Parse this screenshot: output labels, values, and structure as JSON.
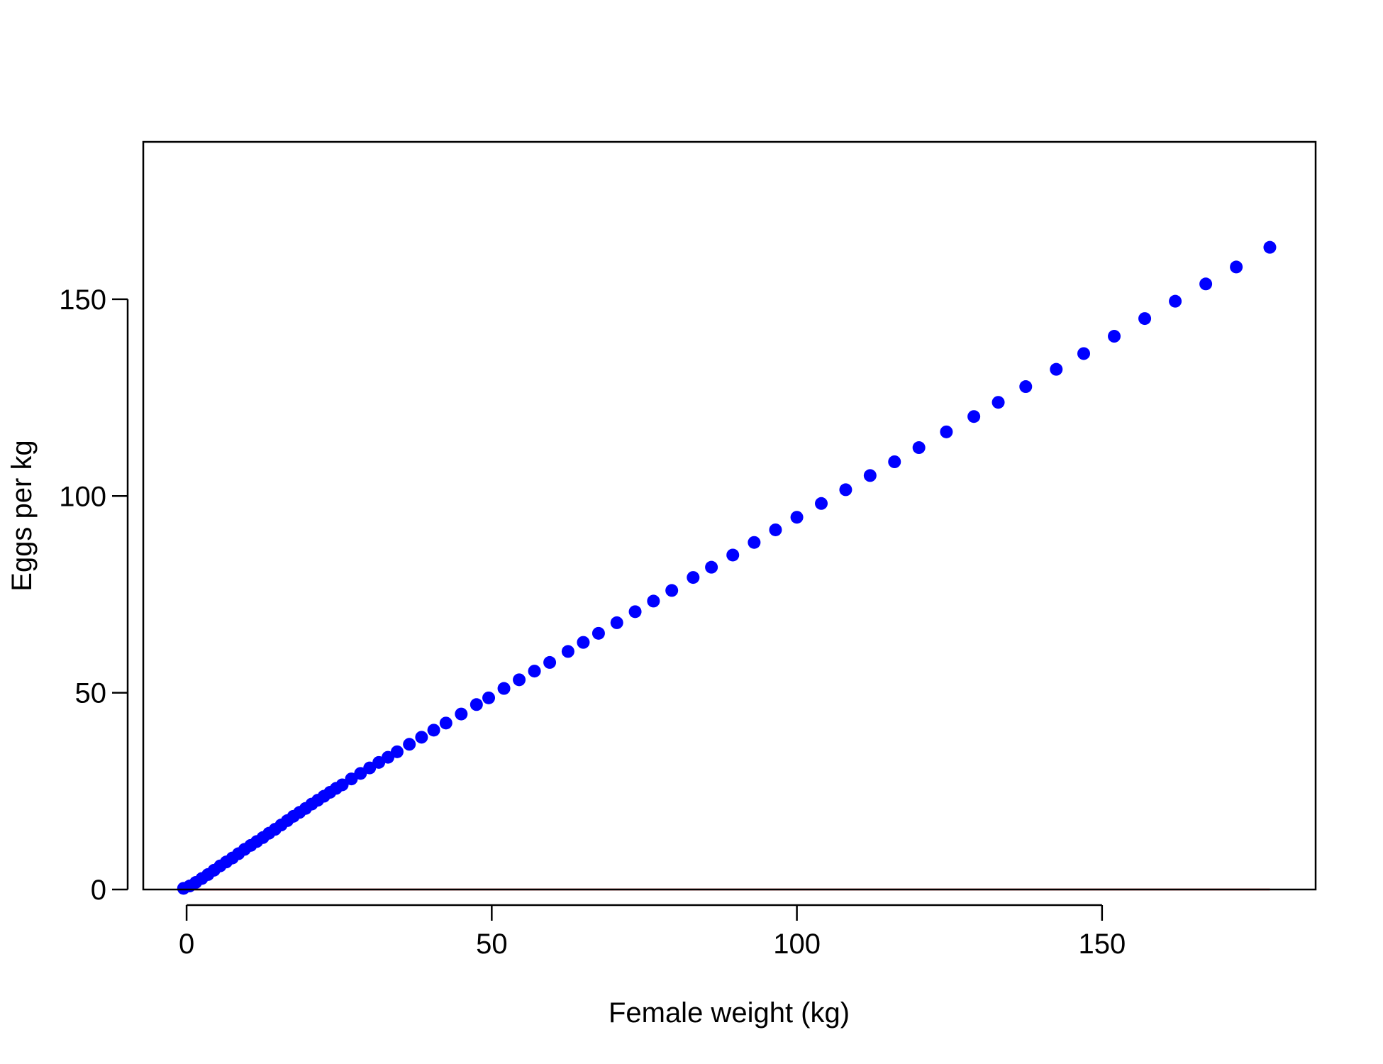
{
  "chart_data": {
    "type": "scatter",
    "title": "",
    "xlabel": "Female weight (kg)",
    "ylabel": "Eggs per kg",
    "xlim": [
      -7.1,
      185
    ],
    "ylim": [
      0,
      190
    ],
    "x_ticks": [
      0,
      50,
      100,
      150
    ],
    "y_ticks": [
      0,
      50,
      100,
      150
    ],
    "grid": false,
    "legend": false,
    "point_color": "#0000ff",
    "reference_line": {
      "y": 0,
      "x_range": [
        -0.5,
        177.5
      ],
      "color": "#cc0000"
    },
    "series": [
      {
        "x": [
          -0.5,
          0.5,
          1.5,
          2.5,
          3.5,
          4.5,
          5.5,
          6.5,
          7.5,
          8.5,
          9.5,
          10.5,
          11.5,
          12.5,
          13.5,
          14.5,
          15.5,
          16.5,
          17.5,
          18.5,
          19.5,
          20.5,
          21.5,
          22.5,
          23.5,
          24.5,
          25.5,
          27,
          28.5,
          30,
          31.5,
          33,
          34.5,
          36.5,
          38.5,
          40.5,
          42.5,
          45,
          47.5,
          49.5,
          52,
          54.5,
          57,
          59.5,
          62.5,
          65,
          67.5,
          70.5,
          73.5,
          76.5,
          79.5,
          83,
          86,
          89.5,
          93,
          96.5,
          100,
          104,
          108,
          112,
          116,
          120,
          124.5,
          129,
          133,
          137.5,
          142.5,
          147,
          152,
          157,
          162,
          167,
          172,
          177.5
        ],
        "y": [
          0.3,
          0.9,
          1.8,
          2.8,
          3.8,
          4.9,
          6.0,
          7.0,
          8.0,
          9.1,
          10.2,
          11.2,
          12.2,
          13.2,
          14.3,
          15.3,
          16.4,
          17.5,
          18.6,
          19.6,
          20.6,
          21.7,
          22.7,
          23.7,
          24.7,
          25.7,
          26.6,
          28.1,
          29.5,
          30.9,
          32.3,
          33.6,
          35.0,
          36.9,
          38.7,
          40.5,
          42.3,
          44.6,
          47.0,
          48.7,
          51.1,
          53.3,
          55.5,
          57.7,
          60.5,
          62.8,
          65.1,
          67.8,
          70.6,
          73.3,
          76.0,
          79.3,
          81.9,
          85.0,
          88.2,
          91.4,
          94.6,
          98.1,
          101.6,
          105.2,
          108.7,
          112.3,
          116.3,
          120.2,
          123.8,
          127.8,
          132.2,
          136.2,
          140.6,
          145.1,
          149.5,
          153.9,
          158.2,
          163.2
        ]
      }
    ]
  }
}
